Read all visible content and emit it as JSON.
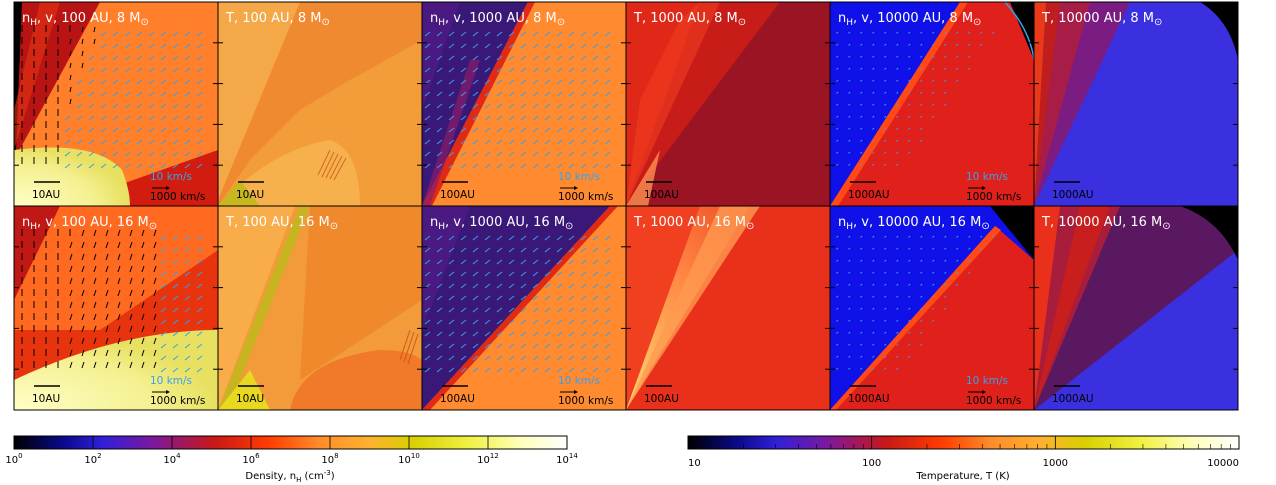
{
  "chart_data": {
    "type": "heatmap",
    "rows": [
      "8",
      "16"
    ],
    "columns": [
      {
        "field": "nH",
        "scale_au": "100",
        "scale_label": "10AU",
        "velocity": true
      },
      {
        "field": "T",
        "scale_au": "100",
        "scale_label": "10AU",
        "velocity": false
      },
      {
        "field": "nH",
        "scale_au": "1000",
        "scale_label": "100AU",
        "velocity": true
      },
      {
        "field": "T",
        "scale_au": "1000",
        "scale_label": "100AU",
        "velocity": false
      },
      {
        "field": "nH",
        "scale_au": "10000",
        "scale_label": "1000AU",
        "velocity": true
      },
      {
        "field": "T",
        "scale_au": "10000",
        "scale_label": "1000AU",
        "velocity": false
      }
    ],
    "panels": [
      {
        "title": "n",
        "sub": "H",
        "rest": ", v, 100 AU, 8 M",
        "sun": "⊙"
      },
      {
        "title": "T, 100 AU, 8 M",
        "sun": "⊙"
      },
      {
        "title": "n",
        "sub": "H",
        "rest": ", v, 1000 AU, 8 M",
        "sun": "⊙"
      },
      {
        "title": "T, 1000 AU, 8 M",
        "sun": "⊙"
      },
      {
        "title": "n",
        "sub": "H",
        "rest": ", v, 10000 AU, 8 M",
        "sun": "⊙"
      },
      {
        "title": "T, 10000 AU, 8 M",
        "sun": "⊙"
      },
      {
        "title": "n",
        "sub": "H",
        "rest": ", v, 100 AU, 16 M",
        "sun": "⊙"
      },
      {
        "title": "T, 100 AU, 16 M",
        "sun": "⊙"
      },
      {
        "title": "n",
        "sub": "H",
        "rest": ", v, 1000 AU, 16 M",
        "sun": "⊙"
      },
      {
        "title": "T, 1000 AU, 16 M",
        "sun": "⊙"
      },
      {
        "title": "n",
        "sub": "H",
        "rest": ", v, 10000 AU, 16 M",
        "sun": "⊙"
      },
      {
        "title": "T, 10000 AU, 16 M",
        "sun": "⊙"
      }
    ],
    "velocity_labels": {
      "slow": "10 km/s",
      "fast": "1000 km/s"
    },
    "density_colorbar": {
      "label": "Density, n",
      "label_sub": "H",
      "label_unit": " (cm",
      "label_sup": "-3",
      "label_end": ")",
      "ticks": [
        {
          "base": "10",
          "exp": "0"
        },
        {
          "base": "10",
          "exp": "2"
        },
        {
          "base": "10",
          "exp": "4"
        },
        {
          "base": "10",
          "exp": "6"
        },
        {
          "base": "10",
          "exp": "8"
        },
        {
          "base": "10",
          "exp": "10"
        },
        {
          "base": "10",
          "exp": "12"
        },
        {
          "base": "10",
          "exp": "14"
        }
      ],
      "range_log": [
        0,
        14
      ],
      "colors": [
        "#000000",
        "#0a0a8c",
        "#3020d8",
        "#7a18a0",
        "#c81818",
        "#ff3c00",
        "#ff8c2a",
        "#ffb030",
        "#d8d000",
        "#f0f040",
        "#ffffc0",
        "#ffffff"
      ]
    },
    "temperature_colorbar": {
      "label": "Temperature, T (K)",
      "ticks": [
        "10",
        "100",
        "1000",
        "10000"
      ],
      "range": [
        10,
        10000
      ],
      "scale": "log",
      "colors": [
        "#000000",
        "#0a0a8c",
        "#3020d8",
        "#7a18a0",
        "#c81818",
        "#ff3c00",
        "#ff8c2a",
        "#ffb030",
        "#d8d000",
        "#f0f040",
        "#ffffc0",
        "#ffffff"
      ]
    },
    "colors": {
      "arrow_dark": "#000000",
      "arrow_light": "#3aa0e8",
      "density_bg_100_8": "#d21c10",
      "density_bg_100_16": "#e8340e",
      "temp_bg_100_8": "#f08a30",
      "temp_bg_100_16": "#f39a3a",
      "density_bg_1000": "#3a1878",
      "temp_bg_1000": "#5a1458",
      "density_bg_10000": "#1010e8",
      "temp_bg_10000": "#3a30e0"
    }
  }
}
